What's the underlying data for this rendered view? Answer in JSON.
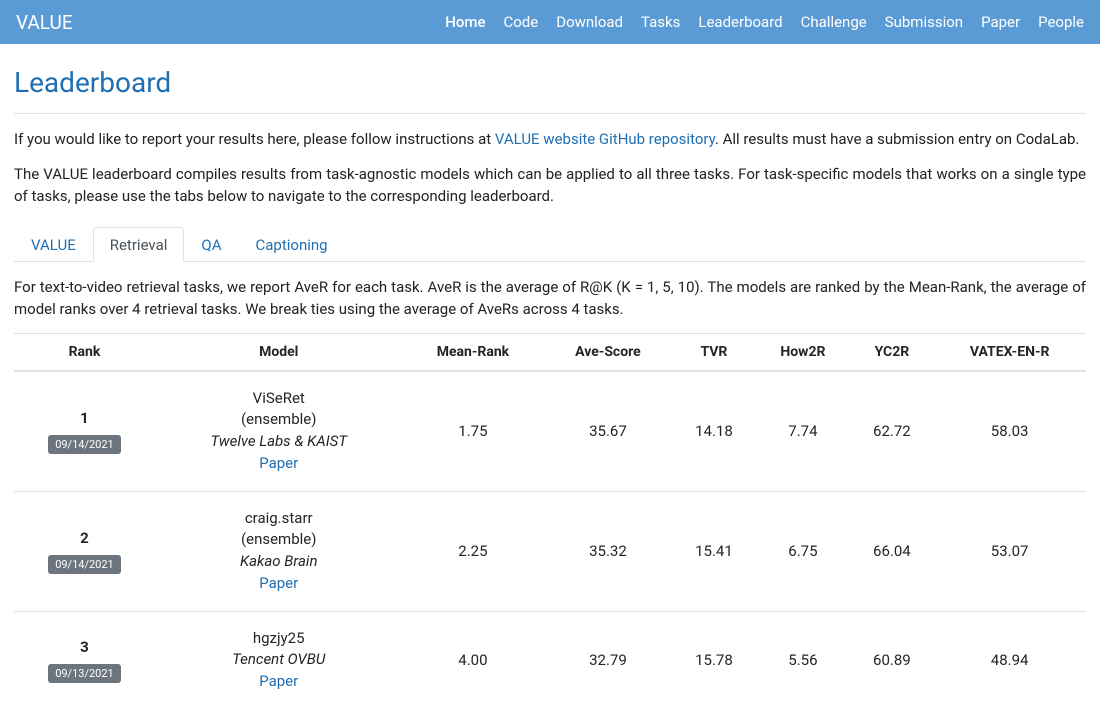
{
  "navbar": {
    "brand": "VALUE",
    "items": [
      {
        "label": "Home",
        "active": true
      },
      {
        "label": "Code"
      },
      {
        "label": "Download"
      },
      {
        "label": "Tasks"
      },
      {
        "label": "Leaderboard"
      },
      {
        "label": "Challenge"
      },
      {
        "label": "Submission"
      },
      {
        "label": "Paper"
      },
      {
        "label": "People"
      }
    ]
  },
  "page": {
    "title": "Leaderboard",
    "intro_prefix": "If you would like to report your results here, please follow instructions at ",
    "intro_link": "VALUE website GitHub repository",
    "intro_suffix": ". All results must have a submission entry on CodaLab.",
    "desc": "The VALUE leaderboard compiles results from task-agnostic models which can be applied to all three tasks. For task-specific models that works on a single type of tasks, please use the tabs below to navigate to the corresponding leaderboard.",
    "tab_desc": "For text-to-video retrieval tasks, we report AveR for each task. AveR is the average of R@K (K = 1, 5, 10). The models are ranked by the Mean-Rank, the average of model ranks over 4 retrieval tasks. We break ties using the average of AveRs across 4 tasks."
  },
  "tabs": [
    {
      "label": "VALUE"
    },
    {
      "label": "Retrieval",
      "active": true
    },
    {
      "label": "QA"
    },
    {
      "label": "Captioning"
    }
  ],
  "table": {
    "columns": [
      "Rank",
      "Model",
      "Mean-Rank",
      "Ave-Score",
      "TVR",
      "How2R",
      "YC2R",
      "VATEX-EN-R"
    ],
    "rows": [
      {
        "rank": "1",
        "date": "09/14/2021",
        "model_name": "ViSeRet",
        "model_sub": "(ensemble)",
        "model_org": "Twelve Labs & KAIST",
        "paper": "Paper",
        "mean_rank": "1.75",
        "ave_score": "35.67",
        "tvr": "14.18",
        "how2r": "7.74",
        "yc2r": "62.72",
        "vatex": "58.03"
      },
      {
        "rank": "2",
        "date": "09/14/2021",
        "model_name": "craig.starr",
        "model_sub": "(ensemble)",
        "model_org": "Kakao Brain",
        "paper": "Paper",
        "mean_rank": "2.25",
        "ave_score": "35.32",
        "tvr": "15.41",
        "how2r": "6.75",
        "yc2r": "66.04",
        "vatex": "53.07"
      },
      {
        "rank": "3",
        "date": "09/13/2021",
        "model_name": "hgzjy25",
        "model_sub": "",
        "model_org": "Tencent OVBU",
        "paper": "Paper",
        "mean_rank": "4.00",
        "ave_score": "32.79",
        "tvr": "15.78",
        "how2r": "5.56",
        "yc2r": "60.89",
        "vatex": "48.94"
      }
    ]
  },
  "colors": {
    "navbar_bg": "#5b9bd5",
    "link": "#1f6fb2",
    "badge_bg": "#6c757d",
    "border": "#dee2e6"
  }
}
